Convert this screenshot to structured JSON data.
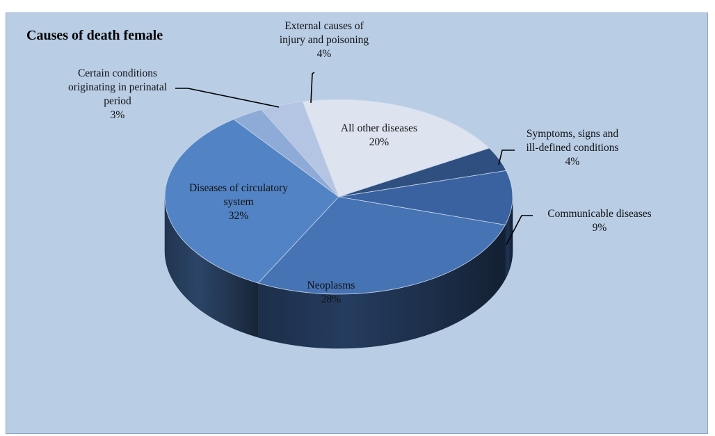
{
  "chart_data": {
    "type": "pie",
    "title": "Causes of death female",
    "slices": [
      {
        "label": "All other diseases",
        "label_lines": [
          "All other diseases"
        ],
        "value": 20,
        "value_label": "20%",
        "color": "#dde3ef"
      },
      {
        "label": "Symptoms, signs and ill-defined conditions",
        "label_lines": [
          "Symptoms, signs and",
          "ill-defined conditions"
        ],
        "value": 4,
        "value_label": "4%",
        "color": "#2e4f80"
      },
      {
        "label": "Communicable diseases",
        "label_lines": [
          "Communicable diseases"
        ],
        "value": 9,
        "value_label": "9%",
        "color": "#3a62a0"
      },
      {
        "label": "Neoplasms",
        "label_lines": [
          "Neoplasms"
        ],
        "value": 28,
        "value_label": "28%",
        "color": "#4673b4"
      },
      {
        "label": "Diseases of circulatory system",
        "label_lines": [
          "Diseases of circulatory",
          "system"
        ],
        "value": 32,
        "value_label": "32%",
        "color": "#5283c4"
      },
      {
        "label": "Certain conditions originating in perinatal period",
        "label_lines": [
          "Certain conditions",
          "originating in perinatal",
          "period"
        ],
        "value": 3,
        "value_label": "3%",
        "color": "#8eaad7"
      },
      {
        "label": "External causes of injury and poisoning",
        "label_lines": [
          "External causes of",
          "injury and poisoning"
        ],
        "value": 4,
        "value_label": "4%",
        "color": "#b4c4e3"
      }
    ],
    "legend": "none",
    "colors": {
      "background": "#b9cde5",
      "border": "#8ea6c4"
    }
  }
}
